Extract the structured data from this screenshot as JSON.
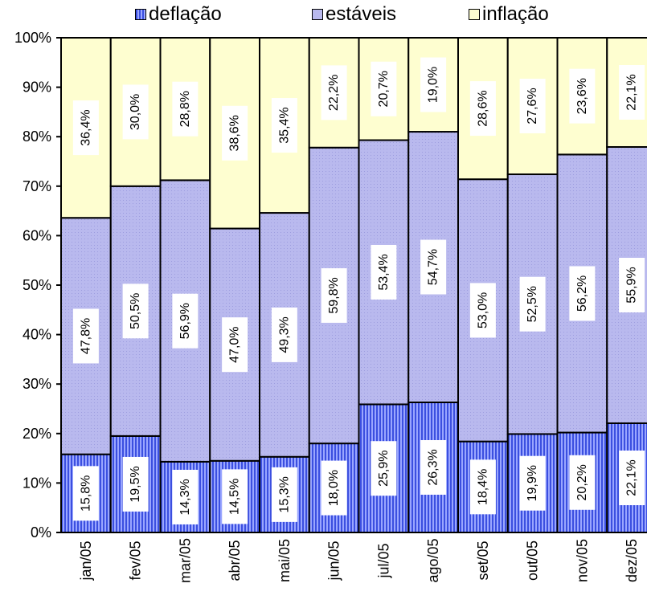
{
  "chart_data": {
    "type": "bar",
    "stacked": true,
    "percent": true,
    "categories": [
      "jan/05",
      "fev/05",
      "mar/05",
      "abr/05",
      "mai/05",
      "jun/05",
      "jul/05",
      "ago/05",
      "set/05",
      "out/05",
      "nov/05",
      "dez/05"
    ],
    "series": [
      {
        "name": "deflação",
        "color": "#3b4fe0",
        "pattern": "vertical-stripes",
        "values": [
          15.8,
          19.5,
          14.3,
          14.5,
          15.3,
          18.0,
          25.9,
          26.3,
          18.4,
          19.9,
          20.2,
          22.1
        ],
        "labels": [
          "15,8%",
          "19,5%",
          "14,3%",
          "14,5%",
          "15,3%",
          "18,0%",
          "25,9%",
          "26,3%",
          "18,4%",
          "19,9%",
          "20,2%",
          "22,1%"
        ]
      },
      {
        "name": "estáveis",
        "color": "#b9b9ee",
        "pattern": "dots",
        "values": [
          47.8,
          50.5,
          56.9,
          47.0,
          49.3,
          59.8,
          53.4,
          54.7,
          53.0,
          52.5,
          56.2,
          55.9
        ],
        "labels": [
          "47,8%",
          "50,5%",
          "56,9%",
          "47,0%",
          "49,3%",
          "59,8%",
          "53,4%",
          "54,7%",
          "53,0%",
          "52,5%",
          "56,2%",
          "55,9%"
        ]
      },
      {
        "name": "inflação",
        "color": "#fefed0",
        "pattern": "solid",
        "values": [
          36.4,
          30.0,
          28.8,
          38.6,
          35.4,
          22.2,
          20.7,
          19.0,
          28.6,
          27.6,
          23.6,
          22.1
        ],
        "labels": [
          "36,4%",
          "30,0%",
          "28,8%",
          "38,6%",
          "35,4%",
          "22,2%",
          "20,7%",
          "19,0%",
          "28,6%",
          "27,6%",
          "23,6%",
          "22,1%"
        ]
      }
    ],
    "ylim": [
      0,
      100
    ],
    "yticks": [
      "0%",
      "10%",
      "20%",
      "30%",
      "40%",
      "50%",
      "60%",
      "70%",
      "80%",
      "90%",
      "100%"
    ],
    "legend_position": "top",
    "grid": false
  }
}
